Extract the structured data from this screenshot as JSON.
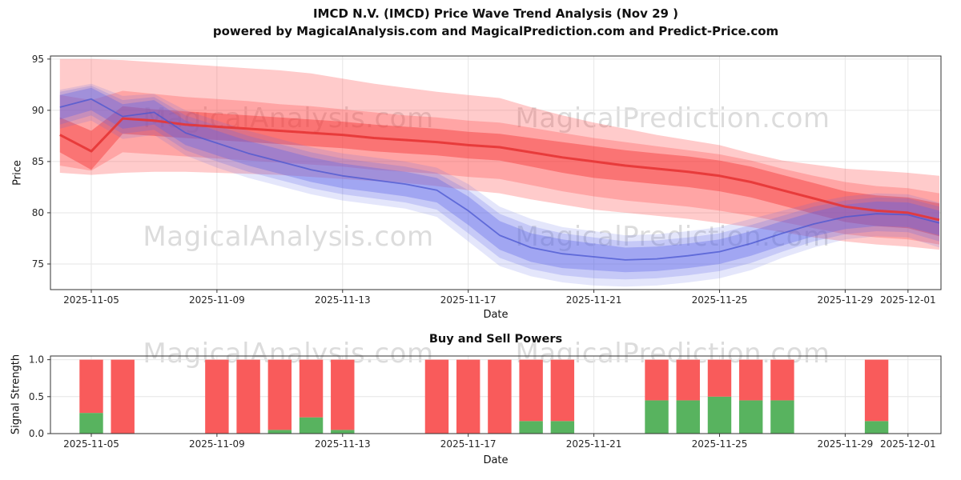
{
  "header": {
    "title": "IMCD N.V. (IMCD) Price Wave Trend Analysis (Nov 29 )",
    "subtitle": "powered by MagicalAnalysis.com and MagicalPrediction.com and Predict-Price.com"
  },
  "watermarks": {
    "analysis": "MagicalAnalysis.com",
    "prediction": "MagicalPrediction.com"
  },
  "chart_data": [
    {
      "type": "area",
      "title": "",
      "xlabel": "Date",
      "ylabel": "Price",
      "ylim": [
        72.5,
        95.3
      ],
      "grid": true,
      "x_unit": "days since 2025-11-04",
      "days": [
        0,
        1,
        2,
        3,
        4,
        5,
        6,
        7,
        8,
        9,
        10,
        11,
        12,
        13,
        14,
        15,
        16,
        17,
        18,
        19,
        20,
        21,
        22,
        23,
        24,
        25,
        26,
        27,
        28
      ],
      "xticks": [
        {
          "day": 1,
          "label": "2025-11-05"
        },
        {
          "day": 5,
          "label": "2025-11-09"
        },
        {
          "day": 9,
          "label": "2025-11-13"
        },
        {
          "day": 13,
          "label": "2025-11-17"
        },
        {
          "day": 17,
          "label": "2025-11-21"
        },
        {
          "day": 21,
          "label": "2025-11-25"
        },
        {
          "day": 25,
          "label": "2025-11-29"
        },
        {
          "day": 27,
          "label": "2025-12-01"
        }
      ],
      "yticks": [
        {
          "value": 75,
          "label": "75"
        },
        {
          "value": 80,
          "label": "80"
        },
        {
          "value": 85,
          "label": "85"
        },
        {
          "value": 90,
          "label": "90"
        },
        {
          "value": 95,
          "label": "95"
        }
      ],
      "bands": [
        {
          "name": "sell-wave-outer",
          "color": "#ff4444",
          "opacity": 0.28,
          "upper": [
            95.0,
            95.0,
            94.9,
            94.7,
            94.5,
            94.3,
            94.1,
            93.9,
            93.6,
            93.1,
            92.6,
            92.2,
            91.8,
            91.5,
            91.2,
            90.3,
            89.5,
            88.8,
            88.2,
            87.6,
            87.1,
            86.6,
            85.8,
            85.1,
            84.7,
            84.3,
            84.1,
            83.9,
            83.6
          ],
          "lower": [
            83.9,
            83.7,
            83.9,
            84.0,
            84.0,
            83.9,
            83.8,
            83.7,
            83.5,
            83.3,
            83.1,
            82.9,
            82.6,
            82.2,
            81.9,
            81.3,
            80.8,
            80.3,
            80.0,
            79.7,
            79.4,
            79.0,
            78.6,
            78.1,
            77.6,
            77.2,
            76.9,
            76.7,
            76.4
          ]
        },
        {
          "name": "sell-wave-mid",
          "color": "#ff4444",
          "opacity": 0.28,
          "upper": [
            91.5,
            91.0,
            91.9,
            91.6,
            91.3,
            91.1,
            90.9,
            90.6,
            90.4,
            90.1,
            89.8,
            89.5,
            89.3,
            89.0,
            88.8,
            88.3,
            87.8,
            87.3,
            86.9,
            86.5,
            86.1,
            85.7,
            85.1,
            84.3,
            83.6,
            83.0,
            82.6,
            82.4,
            81.9
          ],
          "lower": [
            84.6,
            84.1,
            85.9,
            85.7,
            85.5,
            85.3,
            85.1,
            84.9,
            84.7,
            84.5,
            84.2,
            84.0,
            83.8,
            83.5,
            83.3,
            82.7,
            82.1,
            81.6,
            81.2,
            80.9,
            80.6,
            80.2,
            79.7,
            79.1,
            78.5,
            77.9,
            77.6,
            77.4,
            76.9
          ]
        },
        {
          "name": "sell-wave-core",
          "color": "#f43030",
          "opacity": 0.42,
          "upper": [
            89.3,
            88.0,
            90.4,
            90.1,
            89.9,
            89.7,
            89.5,
            89.3,
            89.1,
            88.9,
            88.6,
            88.4,
            88.2,
            87.9,
            87.7,
            87.3,
            86.9,
            86.5,
            86.1,
            85.8,
            85.5,
            85.1,
            84.5,
            83.7,
            82.9,
            82.1,
            81.7,
            81.5,
            80.9
          ],
          "lower": [
            85.9,
            84.2,
            87.7,
            87.5,
            87.3,
            87.1,
            86.9,
            86.7,
            86.5,
            86.3,
            86.0,
            85.8,
            85.6,
            85.3,
            85.1,
            84.5,
            83.9,
            83.4,
            83.1,
            82.8,
            82.5,
            82.1,
            81.5,
            80.7,
            79.9,
            79.1,
            78.7,
            78.5,
            77.7
          ]
        },
        {
          "name": "buy-wave-outer",
          "color": "#5a64e8",
          "opacity": 0.16,
          "upper": [
            92.0,
            92.6,
            91.4,
            91.6,
            90.0,
            89.0,
            88.0,
            87.2,
            86.4,
            85.8,
            85.4,
            85.0,
            84.4,
            82.8,
            80.6,
            79.4,
            78.6,
            78.2,
            77.8,
            77.9,
            78.2,
            78.6,
            79.4,
            80.2,
            81.0,
            81.6,
            81.9,
            81.8,
            81.0
          ],
          "lower": [
            88.2,
            89.0,
            87.2,
            87.6,
            85.6,
            84.4,
            83.4,
            82.6,
            81.8,
            81.2,
            80.8,
            80.4,
            79.6,
            77.2,
            74.8,
            73.8,
            73.2,
            72.9,
            72.8,
            72.9,
            73.2,
            73.6,
            74.4,
            75.6,
            76.6,
            77.4,
            77.7,
            77.6,
            76.6
          ]
        },
        {
          "name": "buy-wave-mid",
          "color": "#5a64e8",
          "opacity": 0.22,
          "upper": [
            91.8,
            92.4,
            91.0,
            91.3,
            89.5,
            88.5,
            87.5,
            86.7,
            85.9,
            85.3,
            84.9,
            84.5,
            83.9,
            82.2,
            79.9,
            78.7,
            78.0,
            77.6,
            77.2,
            77.3,
            77.6,
            78.0,
            78.8,
            79.7,
            80.6,
            81.2,
            81.5,
            81.4,
            80.6
          ],
          "lower": [
            88.6,
            89.5,
            87.7,
            88.1,
            86.1,
            85.0,
            84.0,
            83.2,
            82.4,
            81.8,
            81.4,
            81.0,
            80.3,
            78.0,
            75.6,
            74.5,
            73.9,
            73.6,
            73.5,
            73.6,
            73.9,
            74.3,
            75.1,
            76.2,
            77.2,
            77.9,
            78.2,
            78.1,
            77.2
          ]
        },
        {
          "name": "buy-wave-core",
          "color": "#5a64e8",
          "opacity": 0.34,
          "upper": [
            91.5,
            92.2,
            90.6,
            91.0,
            89.0,
            88.0,
            87.0,
            86.2,
            85.4,
            84.8,
            84.4,
            84.0,
            83.4,
            81.6,
            79.2,
            78.0,
            77.4,
            77.0,
            76.6,
            76.7,
            77.0,
            77.4,
            78.2,
            79.2,
            80.1,
            80.8,
            81.1,
            81.0,
            80.2
          ],
          "lower": [
            89.1,
            90.0,
            88.2,
            88.6,
            86.6,
            85.6,
            84.6,
            83.8,
            83.0,
            82.4,
            82.0,
            81.6,
            81.0,
            78.8,
            76.4,
            75.2,
            74.6,
            74.4,
            74.2,
            74.3,
            74.6,
            75.0,
            75.8,
            76.8,
            77.7,
            78.4,
            78.7,
            78.6,
            77.8
          ]
        }
      ],
      "lines": [
        {
          "name": "sell-trend-line",
          "color": "#e63535",
          "width": 3,
          "opacity": 0.9,
          "values": [
            87.6,
            86.0,
            89.2,
            89.0,
            88.6,
            88.4,
            88.2,
            88.0,
            87.8,
            87.6,
            87.3,
            87.1,
            86.9,
            86.6,
            86.4,
            85.9,
            85.4,
            85.0,
            84.6,
            84.3,
            84.0,
            83.6,
            83.0,
            82.2,
            81.4,
            80.6,
            80.2,
            80.0,
            79.3
          ]
        },
        {
          "name": "buy-trend-line",
          "color": "#4a55d0",
          "width": 1.8,
          "opacity": 0.75,
          "values": [
            90.3,
            91.1,
            89.4,
            89.8,
            87.8,
            86.8,
            85.8,
            85.0,
            84.2,
            83.6,
            83.2,
            82.8,
            82.2,
            80.2,
            77.8,
            76.6,
            76.0,
            75.7,
            75.4,
            75.5,
            75.8,
            76.2,
            77.0,
            78.0,
            78.9,
            79.6,
            79.9,
            79.8,
            79.0
          ]
        }
      ]
    },
    {
      "type": "bar",
      "title": "Buy and Sell Powers",
      "xlabel": "Date",
      "ylabel": "Signal Strength",
      "ylim": [
        0,
        1.05
      ],
      "bar_width_days": 0.75,
      "colors": {
        "buy": "#58b35f",
        "sell": "#f95b5b"
      },
      "xticks": [
        {
          "day": 1,
          "label": "2025-11-05"
        },
        {
          "day": 5,
          "label": "2025-11-09"
        },
        {
          "day": 9,
          "label": "2025-11-13"
        },
        {
          "day": 13,
          "label": "2025-11-17"
        },
        {
          "day": 17,
          "label": "2025-11-21"
        },
        {
          "day": 21,
          "label": "2025-11-25"
        },
        {
          "day": 25,
          "label": "2025-11-29"
        },
        {
          "day": 27,
          "label": "2025-12-01"
        }
      ],
      "yticks": [
        {
          "value": 0,
          "label": "0.0"
        },
        {
          "value": 0.5,
          "label": "0.5"
        },
        {
          "value": 1,
          "label": "1.0"
        }
      ],
      "bars": [
        {
          "day": 1,
          "date": "2025-11-05",
          "buy": 0.28,
          "sell": 0.72
        },
        {
          "day": 2,
          "date": "2025-11-06",
          "buy": 0.0,
          "sell": 1.0
        },
        {
          "day": 5,
          "date": "2025-11-09",
          "buy": 0.0,
          "sell": 1.0
        },
        {
          "day": 6,
          "date": "2025-11-10",
          "buy": 0.0,
          "sell": 1.0
        },
        {
          "day": 7,
          "date": "2025-11-11",
          "buy": 0.05,
          "sell": 0.95
        },
        {
          "day": 8,
          "date": "2025-11-12",
          "buy": 0.22,
          "sell": 0.78
        },
        {
          "day": 9,
          "date": "2025-11-13",
          "buy": 0.05,
          "sell": 0.95
        },
        {
          "day": 12,
          "date": "2025-11-16",
          "buy": 0.0,
          "sell": 1.0
        },
        {
          "day": 13,
          "date": "2025-11-17",
          "buy": 0.0,
          "sell": 1.0
        },
        {
          "day": 14,
          "date": "2025-11-18",
          "buy": 0.0,
          "sell": 1.0
        },
        {
          "day": 15,
          "date": "2025-11-19",
          "buy": 0.17,
          "sell": 0.83
        },
        {
          "day": 16,
          "date": "2025-11-20",
          "buy": 0.17,
          "sell": 0.83
        },
        {
          "day": 19,
          "date": "2025-11-23",
          "buy": 0.45,
          "sell": 0.55
        },
        {
          "day": 20,
          "date": "2025-11-24",
          "buy": 0.45,
          "sell": 0.55
        },
        {
          "day": 21,
          "date": "2025-11-25",
          "buy": 0.5,
          "sell": 0.5
        },
        {
          "day": 22,
          "date": "2025-11-26",
          "buy": 0.45,
          "sell": 0.55
        },
        {
          "day": 23,
          "date": "2025-11-27",
          "buy": 0.45,
          "sell": 0.55
        },
        {
          "day": 26,
          "date": "2025-11-30",
          "buy": 0.17,
          "sell": 0.83
        }
      ]
    }
  ]
}
